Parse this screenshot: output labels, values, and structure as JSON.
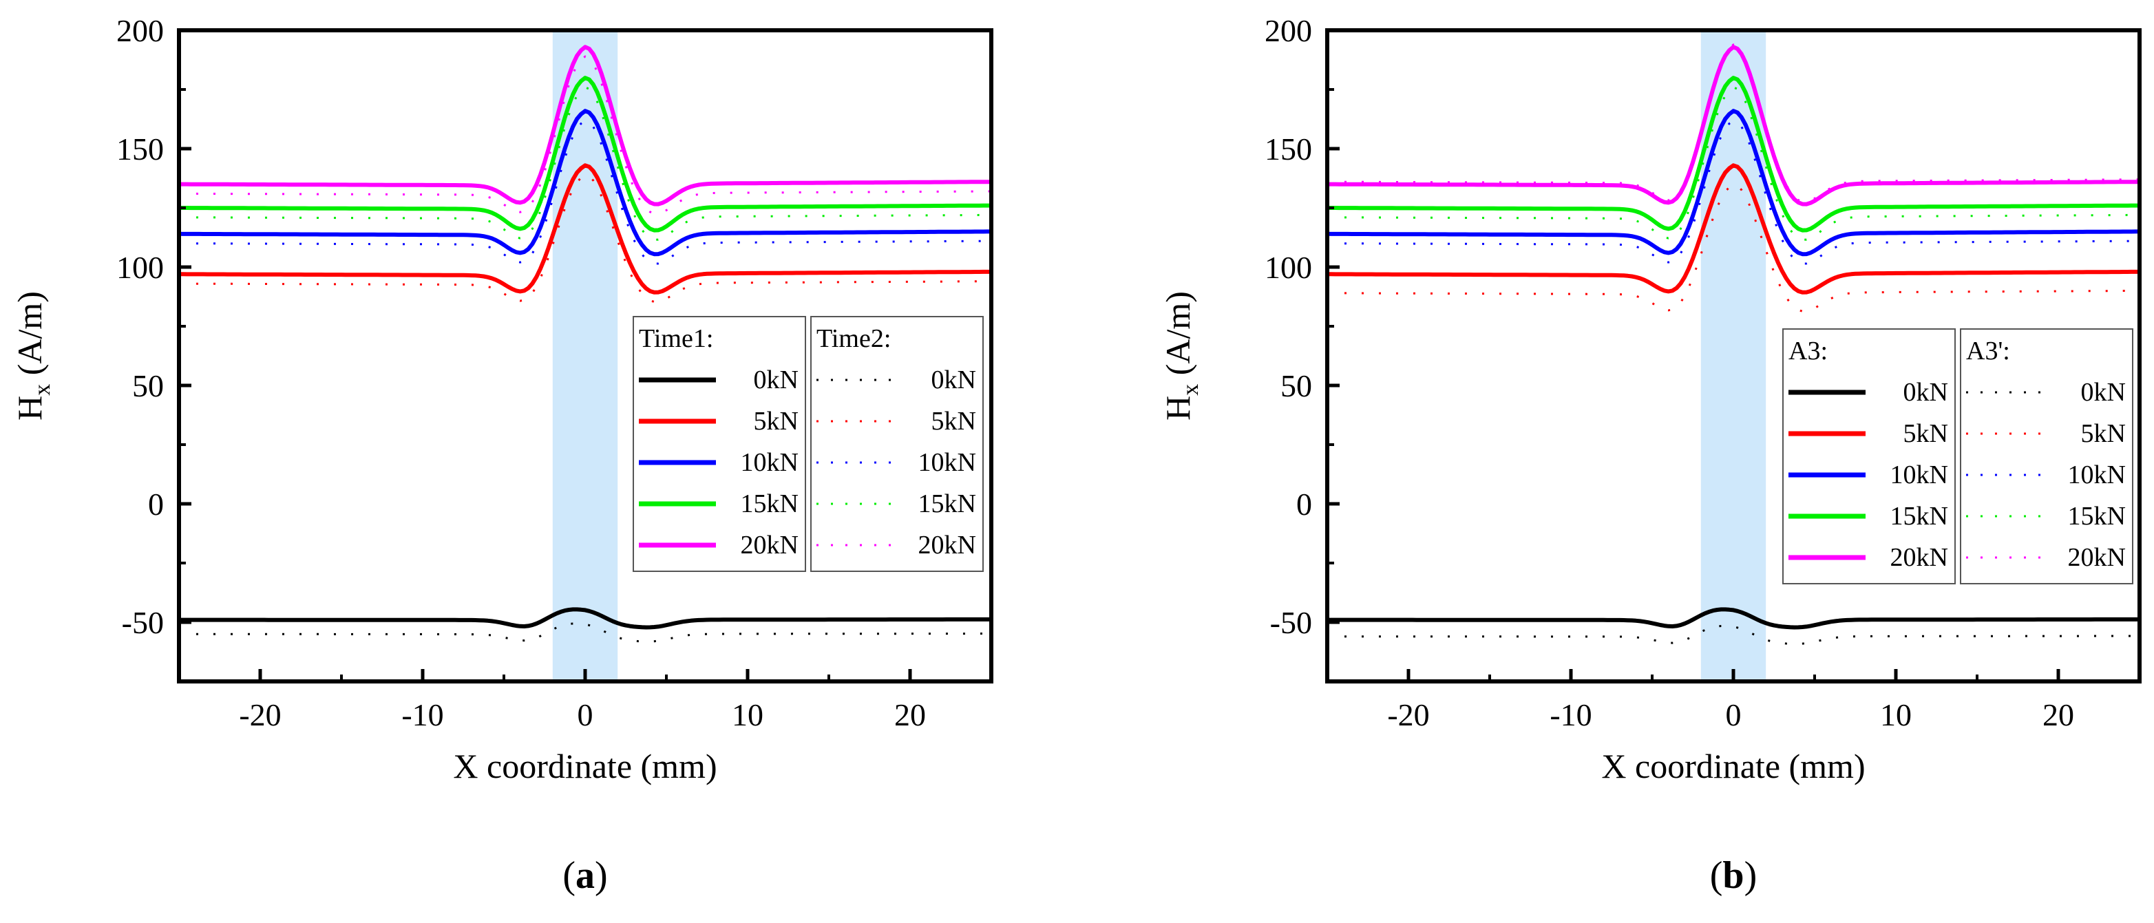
{
  "chart_data": [
    {
      "type": "line",
      "panel_label": "a",
      "xlabel": "X coordinate (mm)",
      "ylabel_main": "H",
      "ylabel_sub": "x",
      "ylabel_unit": " (A/m)",
      "xlim": [
        -25,
        25
      ],
      "ylim": [
        -75,
        200
      ],
      "xticks": [
        -20,
        -10,
        0,
        10,
        20
      ],
      "xtick_labels": [
        "-20",
        "-10",
        "0",
        "10",
        "20"
      ],
      "yticks": [
        -50,
        0,
        50,
        100,
        150,
        200
      ],
      "ytick_labels": [
        "-50",
        "0",
        "50",
        "100",
        "150",
        "200"
      ],
      "grid": false,
      "highlight_band": {
        "x_range": [
          -2,
          2
        ],
        "color": "#cfe8fb"
      },
      "legend_groups": [
        {
          "title": "Time1:",
          "style": "solid"
        },
        {
          "title": "Time2:",
          "style": "dashed"
        }
      ],
      "legend_placement": "lower-right",
      "series": [
        {
          "name": "0kN",
          "color": "#000000",
          "base": -49,
          "dip_depth": 3,
          "peak_height": 4,
          "dashed_offset": -6
        },
        {
          "name": "5kN",
          "color": "#ff0000",
          "base": 97,
          "dip_depth": 9,
          "peak_height": 46,
          "dashed_offset": -4
        },
        {
          "name": "10kN",
          "color": "#0000ff",
          "base": 114,
          "dip_depth": 10,
          "peak_height": 52,
          "dashed_offset": -4
        },
        {
          "name": "15kN",
          "color": "#00ee00",
          "base": 125,
          "dip_depth": 11,
          "peak_height": 55,
          "dashed_offset": -4
        },
        {
          "name": "20kN",
          "color": "#ff00ff",
          "base": 135,
          "dip_depth": 10,
          "peak_height": 58,
          "dashed_offset": -4
        }
      ]
    },
    {
      "type": "line",
      "panel_label": "b",
      "xlabel": "X coordinate (mm)",
      "ylabel_main": "H",
      "ylabel_sub": "x",
      "ylabel_unit": " (A/m)",
      "xlim": [
        -25,
        25
      ],
      "ylim": [
        -75,
        200
      ],
      "xticks": [
        -20,
        -10,
        0,
        10,
        20
      ],
      "xtick_labels": [
        "-20",
        "-10",
        "0",
        "10",
        "20"
      ],
      "yticks": [
        -50,
        0,
        50,
        100,
        150,
        200
      ],
      "ytick_labels": [
        "-50",
        "0",
        "50",
        "100",
        "150",
        "200"
      ],
      "grid": false,
      "highlight_band": {
        "x_range": [
          -2,
          2
        ],
        "color": "#cfe8fb"
      },
      "legend_groups": [
        {
          "title": "A3:",
          "style": "solid"
        },
        {
          "title": "A3':",
          "style": "dashed"
        }
      ],
      "legend_placement": "lower-right",
      "series": [
        {
          "name": "0kN",
          "color": "#000000",
          "base": -49,
          "dip_depth": 3,
          "peak_height": 4,
          "dashed_offset": -7
        },
        {
          "name": "5kN",
          "color": "#ff0000",
          "base": 97,
          "dip_depth": 9,
          "peak_height": 46,
          "dashed_offset": -8
        },
        {
          "name": "10kN",
          "color": "#0000ff",
          "base": 114,
          "dip_depth": 10,
          "peak_height": 52,
          "dashed_offset": -4
        },
        {
          "name": "15kN",
          "color": "#00ee00",
          "base": 125,
          "dip_depth": 11,
          "peak_height": 55,
          "dashed_offset": -4
        },
        {
          "name": "20kN",
          "color": "#ff00ff",
          "base": 135,
          "dip_depth": 10,
          "peak_height": 58,
          "dashed_offset": 1
        }
      ]
    }
  ]
}
